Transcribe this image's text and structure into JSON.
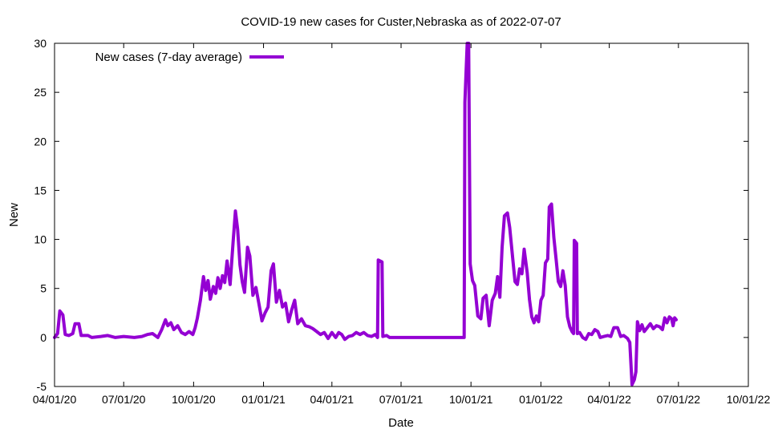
{
  "chart_data": {
    "type": "line",
    "title": "COVID-19 new cases for Custer,Nebraska as of 2022-07-07",
    "xlabel": "Date",
    "ylabel": "New",
    "xlim": [
      "2020-04-01",
      "2022-10-01"
    ],
    "ylim": [
      -5,
      30
    ],
    "grid": false,
    "legend_position": "top-left",
    "x_ticks": [
      {
        "date": "2020-04-01",
        "label": "04/01/20"
      },
      {
        "date": "2020-07-01",
        "label": "07/01/20"
      },
      {
        "date": "2020-10-01",
        "label": "10/01/20"
      },
      {
        "date": "2021-01-01",
        "label": "01/01/21"
      },
      {
        "date": "2021-04-01",
        "label": "04/01/21"
      },
      {
        "date": "2021-07-01",
        "label": "07/01/21"
      },
      {
        "date": "2021-10-01",
        "label": "10/01/21"
      },
      {
        "date": "2022-01-01",
        "label": "01/01/22"
      },
      {
        "date": "2022-04-01",
        "label": "04/01/22"
      },
      {
        "date": "2022-07-01",
        "label": "07/01/22"
      },
      {
        "date": "2022-10-01",
        "label": "10/01/22"
      }
    ],
    "y_ticks": [
      {
        "value": -5,
        "label": "-5"
      },
      {
        "value": 0,
        "label": "0"
      },
      {
        "value": 5,
        "label": "5"
      },
      {
        "value": 10,
        "label": "10"
      },
      {
        "value": 15,
        "label": "15"
      },
      {
        "value": 20,
        "label": "20"
      },
      {
        "value": 25,
        "label": "25"
      },
      {
        "value": 30,
        "label": "30"
      }
    ],
    "series": [
      {
        "name": "New cases (7-day average)",
        "color": "#9400d3",
        "points": [
          [
            "2020-04-01",
            0.0
          ],
          [
            "2020-04-05",
            0.4
          ],
          [
            "2020-04-08",
            2.7
          ],
          [
            "2020-04-12",
            2.3
          ],
          [
            "2020-04-15",
            0.3
          ],
          [
            "2020-04-20",
            0.2
          ],
          [
            "2020-04-25",
            0.4
          ],
          [
            "2020-04-28",
            1.4
          ],
          [
            "2020-05-03",
            1.4
          ],
          [
            "2020-05-06",
            0.2
          ],
          [
            "2020-05-15",
            0.2
          ],
          [
            "2020-05-20",
            0.0
          ],
          [
            "2020-06-01",
            0.1
          ],
          [
            "2020-06-10",
            0.2
          ],
          [
            "2020-06-20",
            0.0
          ],
          [
            "2020-07-01",
            0.1
          ],
          [
            "2020-07-15",
            0.0
          ],
          [
            "2020-07-25",
            0.1
          ],
          [
            "2020-08-01",
            0.3
          ],
          [
            "2020-08-08",
            0.4
          ],
          [
            "2020-08-15",
            0.0
          ],
          [
            "2020-08-20",
            0.8
          ],
          [
            "2020-08-25",
            1.8
          ],
          [
            "2020-08-28",
            1.2
          ],
          [
            "2020-09-01",
            1.5
          ],
          [
            "2020-09-05",
            0.8
          ],
          [
            "2020-09-10",
            1.2
          ],
          [
            "2020-09-15",
            0.5
          ],
          [
            "2020-09-20",
            0.3
          ],
          [
            "2020-09-25",
            0.6
          ],
          [
            "2020-09-30",
            0.3
          ],
          [
            "2020-10-03",
            1.0
          ],
          [
            "2020-10-06",
            2.0
          ],
          [
            "2020-10-10",
            3.8
          ],
          [
            "2020-10-14",
            6.2
          ],
          [
            "2020-10-17",
            4.8
          ],
          [
            "2020-10-20",
            5.8
          ],
          [
            "2020-10-23",
            3.9
          ],
          [
            "2020-10-27",
            5.2
          ],
          [
            "2020-10-30",
            4.5
          ],
          [
            "2020-11-02",
            6.1
          ],
          [
            "2020-11-05",
            5.0
          ],
          [
            "2020-11-08",
            6.3
          ],
          [
            "2020-11-11",
            5.6
          ],
          [
            "2020-11-14",
            7.8
          ],
          [
            "2020-11-18",
            5.4
          ],
          [
            "2020-11-22",
            9.7
          ],
          [
            "2020-11-25",
            12.9
          ],
          [
            "2020-11-28",
            11.0
          ],
          [
            "2020-12-01",
            7.4
          ],
          [
            "2020-12-04",
            5.7
          ],
          [
            "2020-12-07",
            4.6
          ],
          [
            "2020-12-11",
            9.2
          ],
          [
            "2020-12-14",
            8.3
          ],
          [
            "2020-12-18",
            4.3
          ],
          [
            "2020-12-22",
            5.1
          ],
          [
            "2020-12-26",
            3.4
          ],
          [
            "2020-12-30",
            1.7
          ],
          [
            "2021-01-03",
            2.5
          ],
          [
            "2021-01-07",
            3.1
          ],
          [
            "2021-01-11",
            6.8
          ],
          [
            "2021-01-14",
            7.5
          ],
          [
            "2021-01-18",
            3.6
          ],
          [
            "2021-01-22",
            4.8
          ],
          [
            "2021-01-26",
            3.1
          ],
          [
            "2021-01-30",
            3.5
          ],
          [
            "2021-02-03",
            1.6
          ],
          [
            "2021-02-07",
            2.8
          ],
          [
            "2021-02-11",
            3.8
          ],
          [
            "2021-02-15",
            1.4
          ],
          [
            "2021-02-20",
            1.9
          ],
          [
            "2021-02-25",
            1.2
          ],
          [
            "2021-03-02",
            1.1
          ],
          [
            "2021-03-07",
            0.9
          ],
          [
            "2021-03-12",
            0.6
          ],
          [
            "2021-03-17",
            0.3
          ],
          [
            "2021-03-22",
            0.5
          ],
          [
            "2021-03-27",
            -0.1
          ],
          [
            "2021-04-01",
            0.5
          ],
          [
            "2021-04-06",
            0.0
          ],
          [
            "2021-04-10",
            0.5
          ],
          [
            "2021-04-14",
            0.3
          ],
          [
            "2021-04-18",
            -0.2
          ],
          [
            "2021-04-23",
            0.1
          ],
          [
            "2021-04-28",
            0.2
          ],
          [
            "2021-05-03",
            0.5
          ],
          [
            "2021-05-08",
            0.3
          ],
          [
            "2021-05-13",
            0.5
          ],
          [
            "2021-05-18",
            0.2
          ],
          [
            "2021-05-23",
            0.1
          ],
          [
            "2021-05-28",
            0.3
          ],
          [
            "2021-05-31",
            0.0
          ],
          [
            "2021-06-01",
            7.9
          ],
          [
            "2021-06-06",
            7.7
          ],
          [
            "2021-06-07",
            0.1
          ],
          [
            "2021-06-12",
            0.2
          ],
          [
            "2021-06-16",
            0.0
          ],
          [
            "2021-07-01",
            0.0
          ],
          [
            "2021-08-01",
            0.0
          ],
          [
            "2021-09-01",
            0.0
          ],
          [
            "2021-09-22",
            0.0
          ],
          [
            "2021-09-23",
            24.0
          ],
          [
            "2021-09-26",
            30.0
          ],
          [
            "2021-09-28",
            30.0
          ],
          [
            "2021-09-30",
            7.5
          ],
          [
            "2021-10-03",
            5.8
          ],
          [
            "2021-10-06",
            5.3
          ],
          [
            "2021-10-10",
            2.2
          ],
          [
            "2021-10-14",
            1.9
          ],
          [
            "2021-10-17",
            4.0
          ],
          [
            "2021-10-21",
            4.3
          ],
          [
            "2021-10-25",
            1.2
          ],
          [
            "2021-10-29",
            3.8
          ],
          [
            "2021-11-02",
            4.5
          ],
          [
            "2021-11-05",
            6.2
          ],
          [
            "2021-11-08",
            4.1
          ],
          [
            "2021-11-11",
            9.2
          ],
          [
            "2021-11-14",
            12.4
          ],
          [
            "2021-11-18",
            12.7
          ],
          [
            "2021-11-21",
            11.2
          ],
          [
            "2021-11-25",
            8.0
          ],
          [
            "2021-11-28",
            5.7
          ],
          [
            "2021-12-01",
            5.4
          ],
          [
            "2021-12-04",
            7.0
          ],
          [
            "2021-12-07",
            6.5
          ],
          [
            "2021-12-10",
            9.0
          ],
          [
            "2021-12-14",
            6.6
          ],
          [
            "2021-12-17",
            3.9
          ],
          [
            "2021-12-20",
            2.1
          ],
          [
            "2021-12-23",
            1.5
          ],
          [
            "2021-12-26",
            2.2
          ],
          [
            "2021-12-29",
            1.6
          ],
          [
            "2022-01-01",
            3.8
          ],
          [
            "2022-01-04",
            4.3
          ],
          [
            "2022-01-07",
            7.6
          ],
          [
            "2022-01-10",
            8.0
          ],
          [
            "2022-01-12",
            13.3
          ],
          [
            "2022-01-15",
            13.6
          ],
          [
            "2022-01-18",
            10.2
          ],
          [
            "2022-01-21",
            8.0
          ],
          [
            "2022-01-24",
            5.7
          ],
          [
            "2022-01-27",
            5.2
          ],
          [
            "2022-01-30",
            6.8
          ],
          [
            "2022-02-02",
            5.3
          ],
          [
            "2022-02-05",
            2.1
          ],
          [
            "2022-02-08",
            1.1
          ],
          [
            "2022-02-11",
            0.6
          ],
          [
            "2022-02-13",
            0.4
          ],
          [
            "2022-02-14",
            9.9
          ],
          [
            "2022-02-17",
            9.6
          ],
          [
            "2022-02-18",
            0.4
          ],
          [
            "2022-02-21",
            0.5
          ],
          [
            "2022-02-25",
            0.0
          ],
          [
            "2022-03-01",
            -0.2
          ],
          [
            "2022-03-05",
            0.4
          ],
          [
            "2022-03-09",
            0.3
          ],
          [
            "2022-03-13",
            0.8
          ],
          [
            "2022-03-17",
            0.6
          ],
          [
            "2022-03-20",
            0.0
          ],
          [
            "2022-03-25",
            0.1
          ],
          [
            "2022-03-30",
            0.2
          ],
          [
            "2022-04-03",
            0.1
          ],
          [
            "2022-04-07",
            1.0
          ],
          [
            "2022-04-12",
            1.0
          ],
          [
            "2022-04-16",
            0.1
          ],
          [
            "2022-04-20",
            0.2
          ],
          [
            "2022-04-25",
            -0.1
          ],
          [
            "2022-04-28",
            -0.5
          ],
          [
            "2022-05-01",
            -4.8
          ],
          [
            "2022-05-04",
            -4.3
          ],
          [
            "2022-05-06",
            -3.5
          ],
          [
            "2022-05-08",
            1.6
          ],
          [
            "2022-05-11",
            0.7
          ],
          [
            "2022-05-14",
            1.3
          ],
          [
            "2022-05-17",
            0.6
          ],
          [
            "2022-05-21",
            1.0
          ],
          [
            "2022-05-25",
            1.4
          ],
          [
            "2022-05-29",
            0.9
          ],
          [
            "2022-06-02",
            1.2
          ],
          [
            "2022-06-06",
            1.1
          ],
          [
            "2022-06-10",
            0.8
          ],
          [
            "2022-06-13",
            2.0
          ],
          [
            "2022-06-16",
            1.5
          ],
          [
            "2022-06-19",
            2.1
          ],
          [
            "2022-06-22",
            1.9
          ],
          [
            "2022-06-24",
            1.2
          ],
          [
            "2022-06-26",
            2.0
          ],
          [
            "2022-06-28",
            1.8
          ]
        ]
      }
    ]
  }
}
